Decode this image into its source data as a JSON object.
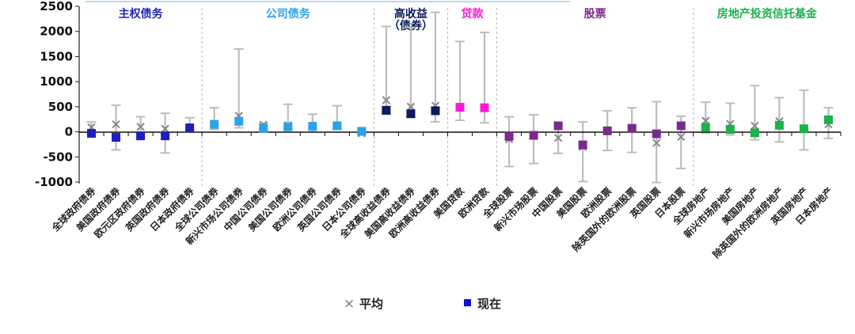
{
  "chart_data": {
    "type": "scatter",
    "title": "",
    "xlabel": "",
    "ylabel": "",
    "ylim": [
      -1000,
      2500
    ],
    "yticks": [
      2500,
      2000,
      1500,
      1000,
      500,
      0,
      -500,
      -1000
    ],
    "grid": false,
    "legend_position": "bottom-center",
    "categories": [
      "全球政府债券",
      "美国政府债券",
      "欧元区政府债券",
      "英国政府债券",
      "日本政府债券",
      "全球公司债券",
      "新兴市场公司债券",
      "中国公司债券",
      "美国公司债券",
      "欧洲公司债券",
      "英国公司债券",
      "日本公司债券",
      "全球高收益债券",
      "美国高收益债券",
      "欧洲高收益债券",
      "美国贷款",
      "欧洲贷款",
      "全球股票",
      "新兴市场股票",
      "中国股票",
      "美国股票",
      "欧洲股票",
      "除英国外的欧洲股票",
      "英国股票",
      "日本股票",
      "全球房地产",
      "新兴市场房地产",
      "美国房地产",
      "除英国外的欧洲房地产",
      "英国房地产",
      "日本房地产"
    ],
    "groups": [
      {
        "label": "主权债务",
        "start": 0,
        "end": 4,
        "color": "#1f1fbf"
      },
      {
        "label": "公司债务",
        "start": 5,
        "end": 11,
        "color": "#2aa3e8"
      },
      {
        "label": "高收益\n（债券）",
        "start": 12,
        "end": 14,
        "color": "#0b1a5c"
      },
      {
        "label": "贷款",
        "start": 15,
        "end": 16,
        "color": "#ff19d8"
      },
      {
        "label": "股票",
        "start": 17,
        "end": 24,
        "color": "#7b2a8c"
      },
      {
        "label": "房地产投资信托基金",
        "start": 25,
        "end": 30,
        "color": "#19b34a"
      }
    ],
    "series": [
      {
        "name": "平均",
        "marker": "x",
        "color": "#888888",
        "values": [
          90,
          150,
          100,
          60,
          70,
          140,
          320,
          140,
          130,
          110,
          110,
          -30,
          630,
          500,
          520,
          480,
          470,
          -150,
          -80,
          -120,
          -300,
          30,
          70,
          -220,
          -100,
          220,
          160,
          120,
          210,
          60,
          150
        ]
      },
      {
        "name": "现在",
        "marker": "square",
        "values": [
          -30,
          -110,
          -80,
          -80,
          80,
          150,
          210,
          70,
          100,
          110,
          120,
          10,
          430,
          360,
          420,
          490,
          480,
          -90,
          -70,
          120,
          -260,
          20,
          70,
          -40,
          120,
          90,
          50,
          -20,
          130,
          60,
          240
        ]
      }
    ],
    "range_low": [
      -40,
      -360,
      -100,
      -420,
      40,
      50,
      80,
      60,
      60,
      0,
      60,
      -50,
      350,
      300,
      200,
      230,
      180,
      -690,
      -630,
      -430,
      -990,
      -370,
      -410,
      -1010,
      -730,
      -20,
      -60,
      -160,
      -200,
      -360,
      -130
    ],
    "range_high": [
      200,
      530,
      300,
      370,
      280,
      480,
      1650,
      170,
      550,
      350,
      520,
      10,
      2100,
      2080,
      2380,
      1800,
      1980,
      300,
      340,
      120,
      200,
      420,
      480,
      600,
      310,
      590,
      570,
      920,
      680,
      830,
      480
    ]
  },
  "legend": {
    "avg_marker": "×",
    "avg_label": "平均",
    "now_label": "现在",
    "now_color": "#1010d0"
  }
}
